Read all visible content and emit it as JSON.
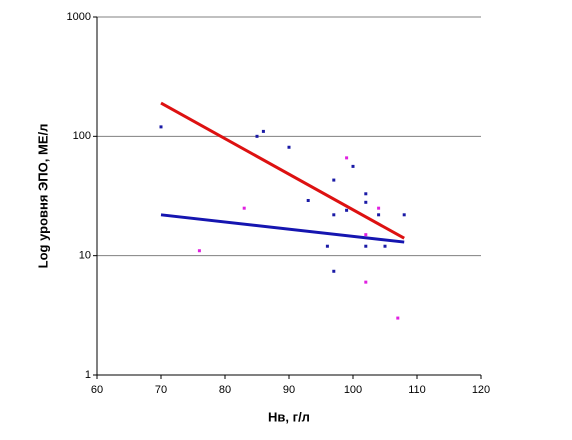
{
  "chart_data": {
    "type": "scatter",
    "x_label": "Нв, г/л",
    "y_label": "Log уровня ЭПО, МЕ/л",
    "xlim": [
      60,
      120
    ],
    "xticks": [
      60,
      70,
      80,
      90,
      100,
      110,
      120
    ],
    "ylim": [
      1,
      1000
    ],
    "yticks": [
      1,
      10,
      100,
      1000
    ],
    "log_y": true,
    "grid": true,
    "series": [
      {
        "color": "#1a1aa6",
        "x": [
          70,
          85,
          86,
          90,
          93,
          96,
          97,
          97,
          97,
          99,
          100,
          102,
          102,
          102,
          104,
          105,
          108
        ],
        "values": [
          120,
          100,
          110,
          81,
          29,
          12,
          43,
          22,
          7.4,
          24,
          56,
          33,
          28,
          12,
          22,
          12,
          22
        ]
      },
      {
        "color": "#e020e0",
        "x": [
          76,
          83,
          99,
          102,
          102,
          104,
          107
        ],
        "values": [
          11,
          25,
          66,
          15,
          6,
          25,
          3
        ]
      }
    ],
    "trendlines": [
      {
        "color": "#dd1111",
        "x": [
          70,
          108
        ],
        "values": [
          190,
          14
        ]
      },
      {
        "color": "#1515b0",
        "x": [
          70,
          108
        ],
        "values": [
          22,
          13
        ]
      }
    ]
  }
}
